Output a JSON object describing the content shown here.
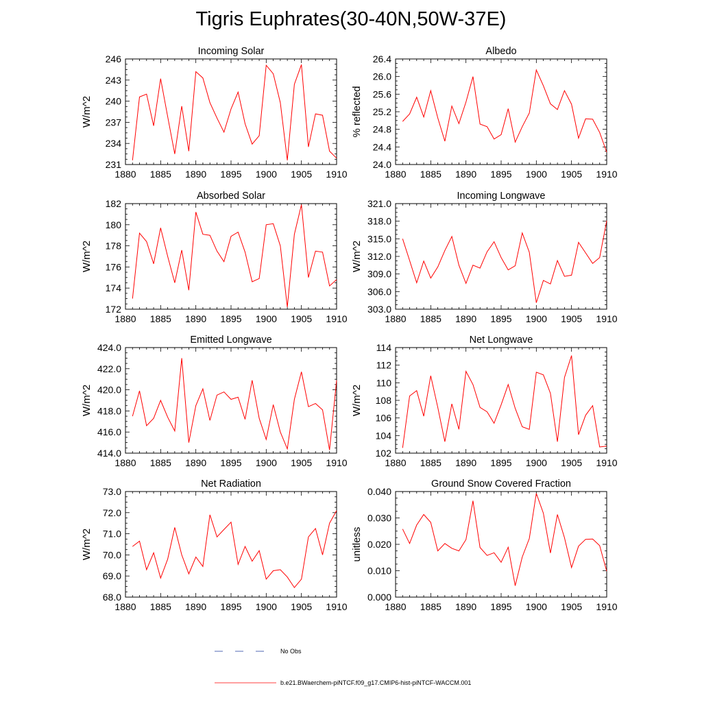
{
  "title": "Tigris Euphrates(30-40N,50W-37E)",
  "colors": {
    "model": "#ff0000",
    "obs": "#1a3a9c",
    "axis": "#000000"
  },
  "legend": {
    "obs_label": "No Obs",
    "model_label": "b.e21.BWaerchem-piNTCF.f09_g17.CMIP6-hist-piNTCF-WACCM.001"
  },
  "chart_data": [
    {
      "type": "line",
      "title": "Incoming Solar",
      "ylabel": "W/m^2",
      "xlim": [
        1880,
        1910
      ],
      "ylim": [
        231,
        246
      ],
      "x_ticks": [
        "1880",
        "1885",
        "1890",
        "1895",
        "1900",
        "1905",
        "1910"
      ],
      "y_ticks": [
        "231",
        "234",
        "237",
        "240",
        "243",
        "246"
      ],
      "x": [
        1881,
        1882,
        1883,
        1884,
        1885,
        1886,
        1887,
        1888,
        1889,
        1890,
        1891,
        1892,
        1893,
        1894,
        1895,
        1896,
        1897,
        1898,
        1899,
        1900,
        1901,
        1902,
        1903,
        1904,
        1905,
        1906,
        1907,
        1908,
        1909,
        1910
      ],
      "series": [
        {
          "values": [
            231.6,
            240.6,
            241.0,
            236.5,
            243.2,
            237.8,
            232.5,
            239.3,
            232.9,
            244.2,
            243.3,
            239.8,
            237.6,
            235.6,
            238.9,
            241.3,
            236.8,
            233.9,
            235.1,
            245.1,
            243.9,
            239.8,
            231.6,
            242.4,
            245.2,
            233.5,
            238.2,
            238.0,
            232.9,
            231.9
          ]
        }
      ]
    },
    {
      "type": "line",
      "title": "Albedo",
      "ylabel": "% reflected",
      "xlim": [
        1880,
        1910
      ],
      "ylim": [
        24.0,
        26.4
      ],
      "x_ticks": [
        "1880",
        "1885",
        "1890",
        "1895",
        "1900",
        "1905",
        "1910"
      ],
      "y_ticks": [
        "24.0",
        "24.4",
        "24.8",
        "25.2",
        "25.6",
        "26.0",
        "26.4"
      ],
      "x": [
        1881,
        1882,
        1883,
        1884,
        1885,
        1886,
        1887,
        1888,
        1889,
        1890,
        1891,
        1892,
        1893,
        1894,
        1895,
        1896,
        1897,
        1898,
        1899,
        1900,
        1901,
        1902,
        1903,
        1904,
        1905,
        1906,
        1907,
        1908,
        1909,
        1910
      ],
      "series": [
        {
          "values": [
            24.98,
            25.15,
            25.53,
            25.08,
            25.68,
            25.06,
            24.53,
            25.33,
            24.93,
            25.42,
            26.0,
            24.92,
            24.86,
            24.58,
            24.68,
            25.27,
            24.51,
            24.86,
            25.17,
            26.15,
            25.79,
            25.38,
            25.25,
            25.68,
            25.37,
            24.6,
            25.04,
            25.03,
            24.73,
            24.28
          ]
        }
      ]
    },
    {
      "type": "line",
      "title": "Absorbed Solar",
      "ylabel": "W/m^2",
      "xlim": [
        1880,
        1910
      ],
      "ylim": [
        172,
        182
      ],
      "x_ticks": [
        "1880",
        "1885",
        "1890",
        "1895",
        "1900",
        "1905",
        "1910"
      ],
      "y_ticks": [
        "172",
        "174",
        "176",
        "178",
        "180",
        "182"
      ],
      "x": [
        1881,
        1882,
        1883,
        1884,
        1885,
        1886,
        1887,
        1888,
        1889,
        1890,
        1891,
        1892,
        1893,
        1894,
        1895,
        1896,
        1897,
        1898,
        1899,
        1900,
        1901,
        1902,
        1903,
        1904,
        1905,
        1906,
        1907,
        1908,
        1909,
        1910
      ],
      "series": [
        {
          "values": [
            173.0,
            179.2,
            178.4,
            176.3,
            179.7,
            177.0,
            174.5,
            177.6,
            173.8,
            181.2,
            179.1,
            179.0,
            177.5,
            176.5,
            178.9,
            179.3,
            177.4,
            174.6,
            174.9,
            180.0,
            180.1,
            178.0,
            172.2,
            179.1,
            181.9,
            175.0,
            177.5,
            177.4,
            174.2,
            174.8
          ]
        }
      ]
    },
    {
      "type": "line",
      "title": "Incoming Longwave",
      "ylabel": "W/m^2",
      "xlim": [
        1880,
        1910
      ],
      "ylim": [
        303.0,
        321.0
      ],
      "x_ticks": [
        "1880",
        "1885",
        "1890",
        "1895",
        "1900",
        "1905",
        "1910"
      ],
      "y_ticks": [
        "303.0",
        "306.0",
        "309.0",
        "312.0",
        "315.0",
        "318.0",
        "321.0"
      ],
      "x": [
        1881,
        1882,
        1883,
        1884,
        1885,
        1886,
        1887,
        1888,
        1889,
        1890,
        1891,
        1892,
        1893,
        1894,
        1895,
        1896,
        1897,
        1898,
        1899,
        1900,
        1901,
        1902,
        1903,
        1904,
        1905,
        1906,
        1907,
        1908,
        1909,
        1910
      ],
      "series": [
        {
          "values": [
            315.0,
            311.3,
            307.5,
            311.2,
            308.3,
            310.2,
            313.0,
            315.4,
            310.5,
            307.4,
            310.5,
            310.0,
            312.8,
            314.5,
            311.8,
            309.7,
            310.4,
            316.0,
            312.7,
            304.1,
            307.9,
            307.3,
            311.3,
            308.6,
            308.8,
            314.4,
            312.6,
            310.8,
            311.8,
            318.1
          ]
        }
      ]
    },
    {
      "type": "line",
      "title": "Emitted Longwave",
      "ylabel": "W/m^2",
      "xlim": [
        1880,
        1910
      ],
      "ylim": [
        414.0,
        424.0
      ],
      "x_ticks": [
        "1880",
        "1885",
        "1890",
        "1895",
        "1900",
        "1905",
        "1910"
      ],
      "y_ticks": [
        "414.0",
        "416.0",
        "418.0",
        "420.0",
        "422.0",
        "424.0"
      ],
      "x": [
        1881,
        1882,
        1883,
        1884,
        1885,
        1886,
        1887,
        1888,
        1889,
        1890,
        1891,
        1892,
        1893,
        1894,
        1895,
        1896,
        1897,
        1898,
        1899,
        1900,
        1901,
        1902,
        1903,
        1904,
        1905,
        1906,
        1907,
        1908,
        1909,
        1910
      ],
      "series": [
        {
          "values": [
            417.5,
            419.9,
            416.6,
            417.3,
            419.0,
            417.4,
            416.1,
            423.0,
            415.0,
            418.5,
            420.1,
            417.1,
            419.5,
            419.8,
            419.1,
            419.3,
            417.2,
            420.9,
            417.3,
            415.3,
            418.6,
            416.0,
            414.4,
            419.1,
            421.7,
            418.4,
            418.7,
            418.1,
            414.3,
            420.9
          ]
        }
      ]
    },
    {
      "type": "line",
      "title": "Net Longwave",
      "ylabel": "W/m^2",
      "xlim": [
        1880,
        1910
      ],
      "ylim": [
        102,
        114
      ],
      "x_ticks": [
        "1880",
        "1885",
        "1890",
        "1895",
        "1900",
        "1905",
        "1910"
      ],
      "y_ticks": [
        "102",
        "104",
        "106",
        "108",
        "110",
        "112",
        "114"
      ],
      "x": [
        1881,
        1882,
        1883,
        1884,
        1885,
        1886,
        1887,
        1888,
        1889,
        1890,
        1891,
        1892,
        1893,
        1894,
        1895,
        1896,
        1897,
        1898,
        1899,
        1900,
        1901,
        1902,
        1903,
        1904,
        1905,
        1906,
        1907,
        1908,
        1909,
        1910
      ],
      "series": [
        {
          "values": [
            102.6,
            108.5,
            109.1,
            106.2,
            110.8,
            107.2,
            103.3,
            107.6,
            104.7,
            111.3,
            109.8,
            107.2,
            106.7,
            105.4,
            107.5,
            109.8,
            107.1,
            105.0,
            104.7,
            111.2,
            110.9,
            108.8,
            103.3,
            110.6,
            113.1,
            104.1,
            106.3,
            107.4,
            102.7,
            102.8
          ]
        }
      ]
    },
    {
      "type": "line",
      "title": "Net Radiation",
      "ylabel": "W/m^2",
      "xlim": [
        1880,
        1910
      ],
      "ylim": [
        68.0,
        73.0
      ],
      "x_ticks": [
        "1880",
        "1885",
        "1890",
        "1895",
        "1900",
        "1905",
        "1910"
      ],
      "y_ticks": [
        "68.0",
        "69.0",
        "70.0",
        "71.0",
        "72.0",
        "73.0"
      ],
      "x": [
        1881,
        1882,
        1883,
        1884,
        1885,
        1886,
        1887,
        1888,
        1889,
        1890,
        1891,
        1892,
        1893,
        1894,
        1895,
        1896,
        1897,
        1898,
        1899,
        1900,
        1901,
        1902,
        1903,
        1904,
        1905,
        1906,
        1907,
        1908,
        1909,
        1910
      ],
      "series": [
        {
          "values": [
            70.4,
            70.65,
            69.3,
            70.1,
            68.9,
            69.8,
            71.3,
            70.0,
            69.1,
            69.9,
            69.45,
            71.9,
            70.85,
            71.2,
            71.55,
            69.55,
            70.4,
            69.7,
            70.2,
            68.85,
            69.25,
            69.3,
            68.95,
            68.45,
            68.85,
            70.85,
            71.25,
            70.0,
            71.5,
            72.1
          ]
        }
      ]
    },
    {
      "type": "line",
      "title": "Ground Snow Covered Fraction",
      "ylabel": "unitless",
      "xlim": [
        1880,
        1910
      ],
      "ylim": [
        0.0,
        0.04
      ],
      "x_ticks": [
        "1880",
        "1885",
        "1890",
        "1895",
        "1900",
        "1905",
        "1910"
      ],
      "y_ticks": [
        "0.000",
        "0.010",
        "0.020",
        "0.030",
        "0.040"
      ],
      "x": [
        1881,
        1882,
        1883,
        1884,
        1885,
        1886,
        1887,
        1888,
        1889,
        1890,
        1891,
        1892,
        1893,
        1894,
        1895,
        1896,
        1897,
        1898,
        1899,
        1900,
        1901,
        1902,
        1903,
        1904,
        1905,
        1906,
        1907,
        1908,
        1909,
        1910
      ],
      "series": [
        {
          "values": [
            0.0258,
            0.0203,
            0.0273,
            0.0313,
            0.0283,
            0.0175,
            0.0203,
            0.0185,
            0.0175,
            0.0218,
            0.0365,
            0.0188,
            0.0158,
            0.0168,
            0.0132,
            0.0189,
            0.0043,
            0.0152,
            0.0222,
            0.0393,
            0.0318,
            0.0167,
            0.0313,
            0.0225,
            0.0112,
            0.0193,
            0.0219,
            0.022,
            0.0195,
            0.0098
          ]
        }
      ]
    }
  ]
}
